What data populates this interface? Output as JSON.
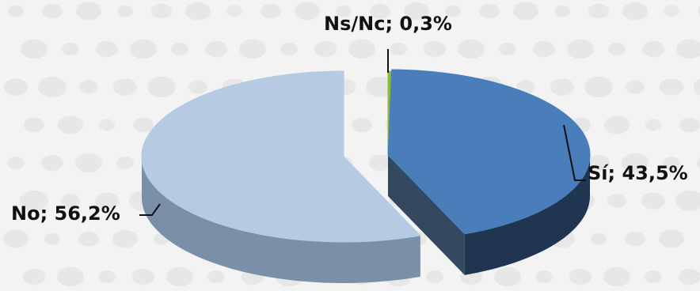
{
  "chart_data": {
    "type": "pie",
    "style": "3d-exploded",
    "title": "",
    "slices": [
      {
        "label": "Ns/Nc",
        "value": 0.3,
        "display": "Ns/Nc; 0,3%",
        "color": "#8fb83a",
        "side_color": "#5a7a1e"
      },
      {
        "label": "Sí",
        "value": 43.5,
        "display": "Sí; 43,5%",
        "color": "#4a7ebb",
        "side_color": "#1f3550"
      },
      {
        "label": "No",
        "value": 56.2,
        "display": "No; 56,2%",
        "color": "#b6cbe3",
        "side_color": "#7a8fa8"
      }
    ],
    "legend": "none",
    "data_labels": "outside-with-leader-lines"
  },
  "colors": {
    "background": "#f3f3f3",
    "pattern_dots": "#e4e4e4",
    "label_text": "#111111"
  }
}
